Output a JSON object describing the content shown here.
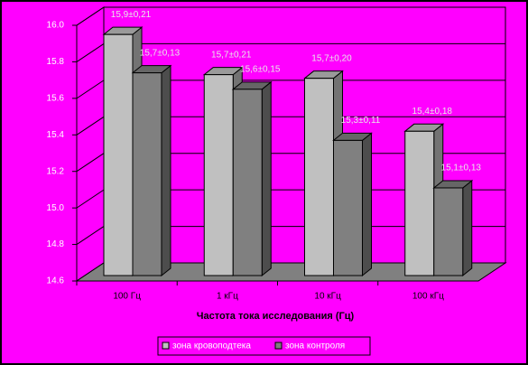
{
  "chart_data": {
    "type": "bar3d",
    "x_label": "Частота тока исследования (Гц)",
    "categories": [
      "100 Гц",
      "1 кГц",
      "10 кГц",
      "100 кГц"
    ],
    "series": [
      {
        "name": "зона кровоподтека",
        "color": "#c0c0c0",
        "values": [
          15.92,
          15.7,
          15.68,
          15.39
        ],
        "value_labels": [
          "15,9±0,21",
          "15,7±0,21",
          "15,7±0,20",
          "15,4±0,18"
        ]
      },
      {
        "name": "зона контроля",
        "color": "#808080",
        "values": [
          15.71,
          15.62,
          15.34,
          15.08
        ],
        "value_labels": [
          "15,7±0,13",
          "15,6±0,15",
          "15,3±0,11",
          "15,1±0,13"
        ]
      }
    ],
    "ylim": [
      14.6,
      16.0
    ],
    "yticks": [
      14.6,
      14.8,
      {
        "value": 15,
        "label": "15.0"
      },
      15.2,
      15.4,
      15.6,
      15.8,
      {
        "value": 16,
        "label": "16.0"
      }
    ],
    "grid": true
  }
}
